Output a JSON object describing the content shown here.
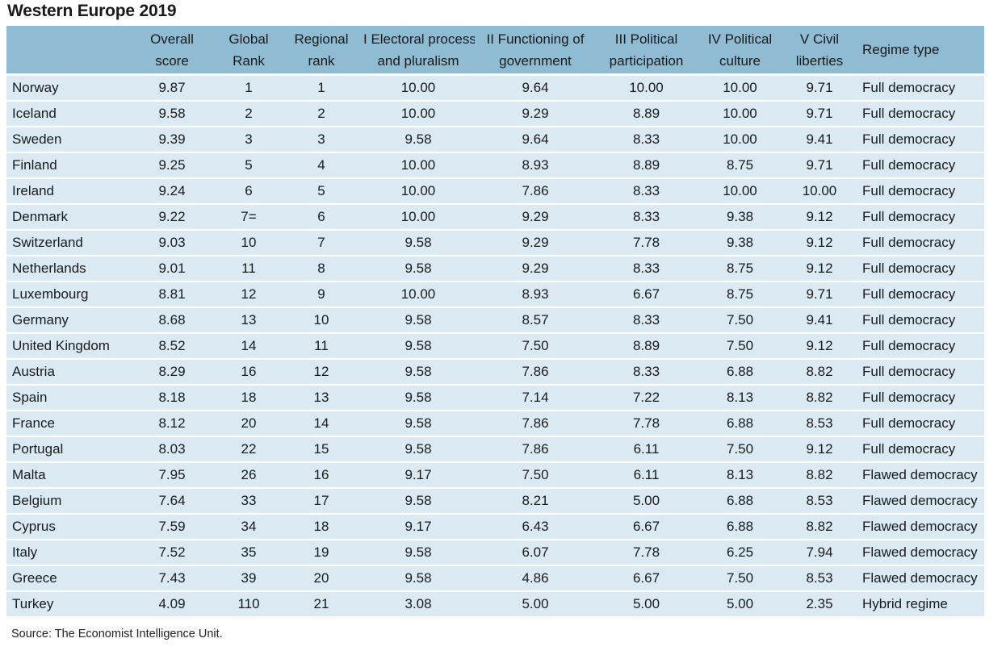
{
  "title": "Western Europe 2019",
  "headers": [
    [
      "",
      ""
    ],
    [
      "Overall",
      "score"
    ],
    [
      "Global",
      "Rank"
    ],
    [
      "Regional",
      "rank"
    ],
    [
      "I Electoral process",
      "and pluralism"
    ],
    [
      "II Functioning of",
      "government"
    ],
    [
      "III Political",
      "participation"
    ],
    [
      "IV Political",
      "culture"
    ],
    [
      "V Civil",
      "liberties"
    ],
    [
      "Regime type",
      ""
    ]
  ],
  "rows": [
    [
      "Norway",
      "9.87",
      "1",
      "1",
      "10.00",
      "9.64",
      "10.00",
      "10.00",
      "9.71",
      "Full democracy"
    ],
    [
      "Iceland",
      "9.58",
      "2",
      "2",
      "10.00",
      "9.29",
      "8.89",
      "10.00",
      "9.71",
      "Full democracy"
    ],
    [
      "Sweden",
      "9.39",
      "3",
      "3",
      "9.58",
      "9.64",
      "8.33",
      "10.00",
      "9.41",
      "Full democracy"
    ],
    [
      "Finland",
      "9.25",
      "5",
      "4",
      "10.00",
      "8.93",
      "8.89",
      "8.75",
      "9.71",
      "Full democracy"
    ],
    [
      "Ireland",
      "9.24",
      "6",
      "5",
      "10.00",
      "7.86",
      "8.33",
      "10.00",
      "10.00",
      "Full democracy"
    ],
    [
      "Denmark",
      "9.22",
      "7=",
      "6",
      "10.00",
      "9.29",
      "8.33",
      "9.38",
      "9.12",
      "Full democracy"
    ],
    [
      "Switzerland",
      "9.03",
      "10",
      "7",
      "9.58",
      "9.29",
      "7.78",
      "9.38",
      "9.12",
      "Full democracy"
    ],
    [
      "Netherlands",
      "9.01",
      "11",
      "8",
      "9.58",
      "9.29",
      "8.33",
      "8.75",
      "9.12",
      "Full democracy"
    ],
    [
      "Luxembourg",
      "8.81",
      "12",
      "9",
      "10.00",
      "8.93",
      "6.67",
      "8.75",
      "9.71",
      "Full democracy"
    ],
    [
      "Germany",
      "8.68",
      "13",
      "10",
      "9.58",
      "8.57",
      "8.33",
      "7.50",
      "9.41",
      "Full democracy"
    ],
    [
      "United Kingdom",
      "8.52",
      "14",
      "11",
      "9.58",
      "7.50",
      "8.89",
      "7.50",
      "9.12",
      "Full democracy"
    ],
    [
      "Austria",
      "8.29",
      "16",
      "12",
      "9.58",
      "7.86",
      "8.33",
      "6.88",
      "8.82",
      "Full democracy"
    ],
    [
      "Spain",
      "8.18",
      "18",
      "13",
      "9.58",
      "7.14",
      "7.22",
      "8.13",
      "8.82",
      "Full democracy"
    ],
    [
      "France",
      "8.12",
      "20",
      "14",
      "9.58",
      "7.86",
      "7.78",
      "6.88",
      "8.53",
      "Full democracy"
    ],
    [
      "Portugal",
      "8.03",
      "22",
      "15",
      "9.58",
      "7.86",
      "6.11",
      "7.50",
      "9.12",
      "Full democracy"
    ],
    [
      "Malta",
      "7.95",
      "26",
      "16",
      "9.17",
      "7.50",
      "6.11",
      "8.13",
      "8.82",
      "Flawed democracy"
    ],
    [
      "Belgium",
      "7.64",
      "33",
      "17",
      "9.58",
      "8.21",
      "5.00",
      "6.88",
      "8.53",
      "Flawed democracy"
    ],
    [
      "Cyprus",
      "7.59",
      "34",
      "18",
      "9.17",
      "6.43",
      "6.67",
      "6.88",
      "8.82",
      "Flawed democracy"
    ],
    [
      "Italy",
      "7.52",
      "35",
      "19",
      "9.58",
      "6.07",
      "7.78",
      "6.25",
      "7.94",
      "Flawed democracy"
    ],
    [
      "Greece",
      "7.43",
      "39",
      "20",
      "9.58",
      "4.86",
      "6.67",
      "7.50",
      "8.53",
      "Flawed democracy"
    ],
    [
      "Turkey",
      "4.09",
      "110",
      "21",
      "3.08",
      "5.00",
      "5.00",
      "5.00",
      "2.35",
      "Hybrid regime"
    ]
  ],
  "source": "Source: The Economist Intelligence Unit.",
  "colors": {
    "header_bg": "#8fbcd3",
    "row_bg": "#dbe9f2",
    "text": "#1a1a1a"
  }
}
